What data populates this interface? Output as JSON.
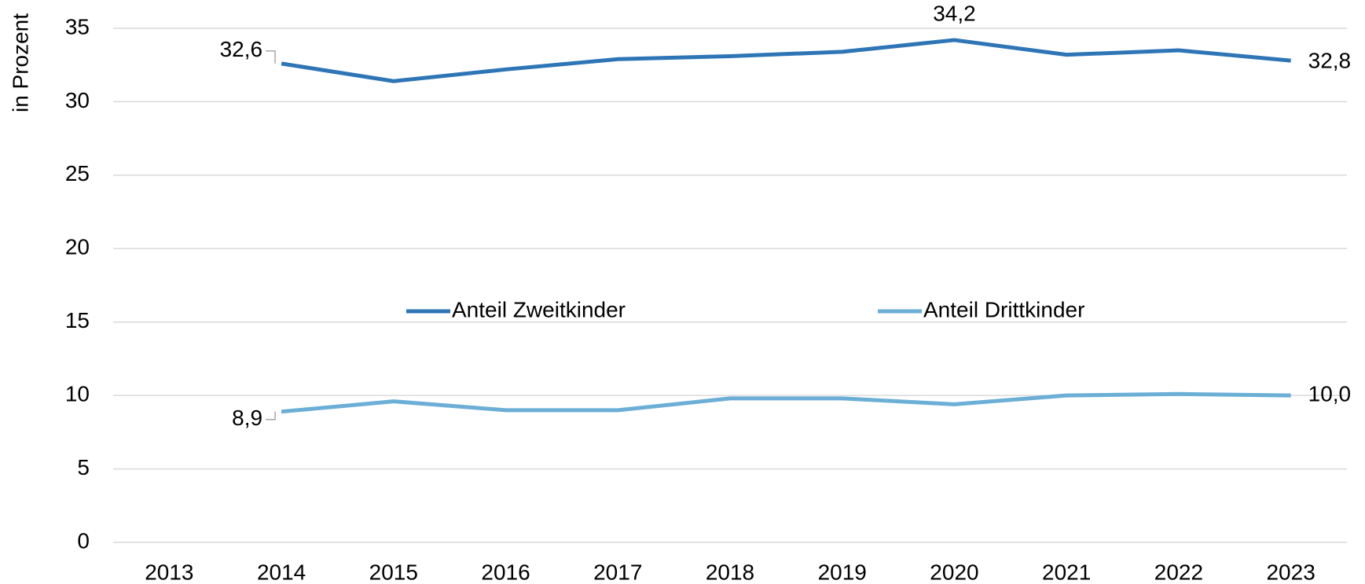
{
  "chart_data": {
    "type": "line",
    "y_label": "in Prozent",
    "categories": [
      "2013",
      "2014",
      "2015",
      "2016",
      "2017",
      "2018",
      "2019",
      "2020",
      "2021",
      "2022",
      "2023"
    ],
    "series": [
      {
        "name": "Anteil Zweitkinder",
        "color": "#2e75b6",
        "values": [
          null,
          32.6,
          31.4,
          32.2,
          32.9,
          33.1,
          33.4,
          34.2,
          33.2,
          33.5,
          32.8
        ],
        "value_labels": [
          null,
          "32,6",
          null,
          null,
          null,
          null,
          null,
          "34,2",
          null,
          null,
          "32,8"
        ]
      },
      {
        "name": "Anteil Drittkinder",
        "color": "#6baed6",
        "values": [
          null,
          8.9,
          9.6,
          9.0,
          9.0,
          9.8,
          9.8,
          9.4,
          10.0,
          10.1,
          10.0
        ],
        "value_labels": [
          null,
          "8,9",
          null,
          null,
          null,
          null,
          null,
          null,
          null,
          null,
          "10,0"
        ]
      }
    ],
    "ylim": [
      0,
      35
    ],
    "yticks": [
      0,
      5,
      10,
      15,
      20,
      25,
      30,
      35
    ],
    "grid": true
  }
}
